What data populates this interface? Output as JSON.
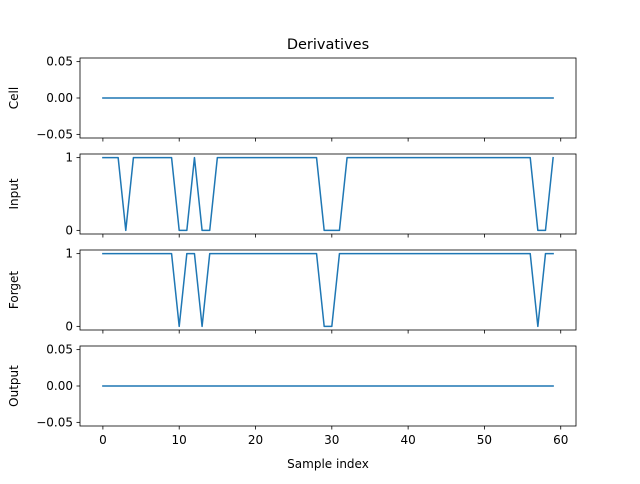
{
  "chart_data": {
    "type": "line",
    "title": "Derivatives",
    "xlabel": "Sample index",
    "xlim": [
      -3,
      62
    ],
    "xticks": [
      0,
      10,
      20,
      30,
      40,
      50,
      60
    ],
    "x_tick_labels": [
      "0",
      "10",
      "20",
      "30",
      "40",
      "50",
      "60"
    ],
    "x": [
      0,
      1,
      2,
      3,
      4,
      5,
      6,
      7,
      8,
      9,
      10,
      11,
      12,
      13,
      14,
      15,
      16,
      17,
      18,
      19,
      20,
      21,
      22,
      23,
      24,
      25,
      26,
      27,
      28,
      29,
      30,
      31,
      32,
      33,
      34,
      35,
      36,
      37,
      38,
      39,
      40,
      41,
      42,
      43,
      44,
      45,
      46,
      47,
      48,
      49,
      50,
      51,
      52,
      53,
      54,
      55,
      56,
      57,
      58,
      59
    ],
    "line_color": "#1f77b4",
    "panels": [
      {
        "ylabel": "Cell",
        "ylim": [
          -0.055,
          0.055
        ],
        "yticks": [
          -0.05,
          0.0,
          0.05
        ],
        "y_tick_labels": [
          "−0.05",
          "0.00",
          "0.05"
        ],
        "values": [
          0,
          0,
          0,
          0,
          0,
          0,
          0,
          0,
          0,
          0,
          0,
          0,
          0,
          0,
          0,
          0,
          0,
          0,
          0,
          0,
          0,
          0,
          0,
          0,
          0,
          0,
          0,
          0,
          0,
          0,
          0,
          0,
          0,
          0,
          0,
          0,
          0,
          0,
          0,
          0,
          0,
          0,
          0,
          0,
          0,
          0,
          0,
          0,
          0,
          0,
          0,
          0,
          0,
          0,
          0,
          0,
          0,
          0,
          0,
          0
        ]
      },
      {
        "ylabel": "Input",
        "ylim": [
          -0.05,
          1.05
        ],
        "yticks": [
          0,
          1
        ],
        "y_tick_labels": [
          "0",
          "1"
        ],
        "values": [
          1,
          1,
          1,
          0,
          1,
          1,
          1,
          1,
          1,
          1,
          0,
          0,
          1,
          0,
          0,
          1,
          1,
          1,
          1,
          1,
          1,
          1,
          1,
          1,
          1,
          1,
          1,
          1,
          1,
          0,
          0,
          0,
          1,
          1,
          1,
          1,
          1,
          1,
          1,
          1,
          1,
          1,
          1,
          1,
          1,
          1,
          1,
          1,
          1,
          1,
          1,
          1,
          1,
          1,
          1,
          1,
          1,
          0,
          0,
          1
        ]
      },
      {
        "ylabel": "Forget",
        "ylim": [
          -0.05,
          1.05
        ],
        "yticks": [
          0,
          1
        ],
        "y_tick_labels": [
          "0",
          "1"
        ],
        "values": [
          1,
          1,
          1,
          1,
          1,
          1,
          1,
          1,
          1,
          1,
          0,
          1,
          1,
          0,
          1,
          1,
          1,
          1,
          1,
          1,
          1,
          1,
          1,
          1,
          1,
          1,
          1,
          1,
          1,
          0,
          0,
          1,
          1,
          1,
          1,
          1,
          1,
          1,
          1,
          1,
          1,
          1,
          1,
          1,
          1,
          1,
          1,
          1,
          1,
          1,
          1,
          1,
          1,
          1,
          1,
          1,
          1,
          0,
          1,
          1
        ]
      },
      {
        "ylabel": "Output",
        "ylim": [
          -0.055,
          0.055
        ],
        "yticks": [
          -0.05,
          0.0,
          0.05
        ],
        "y_tick_labels": [
          "−0.05",
          "0.00",
          "0.05"
        ],
        "values": [
          0,
          0,
          0,
          0,
          0,
          0,
          0,
          0,
          0,
          0,
          0,
          0,
          0,
          0,
          0,
          0,
          0,
          0,
          0,
          0,
          0,
          0,
          0,
          0,
          0,
          0,
          0,
          0,
          0,
          0,
          0,
          0,
          0,
          0,
          0,
          0,
          0,
          0,
          0,
          0,
          0,
          0,
          0,
          0,
          0,
          0,
          0,
          0,
          0,
          0,
          0,
          0,
          0,
          0,
          0,
          0,
          0,
          0,
          0,
          0
        ]
      }
    ]
  }
}
